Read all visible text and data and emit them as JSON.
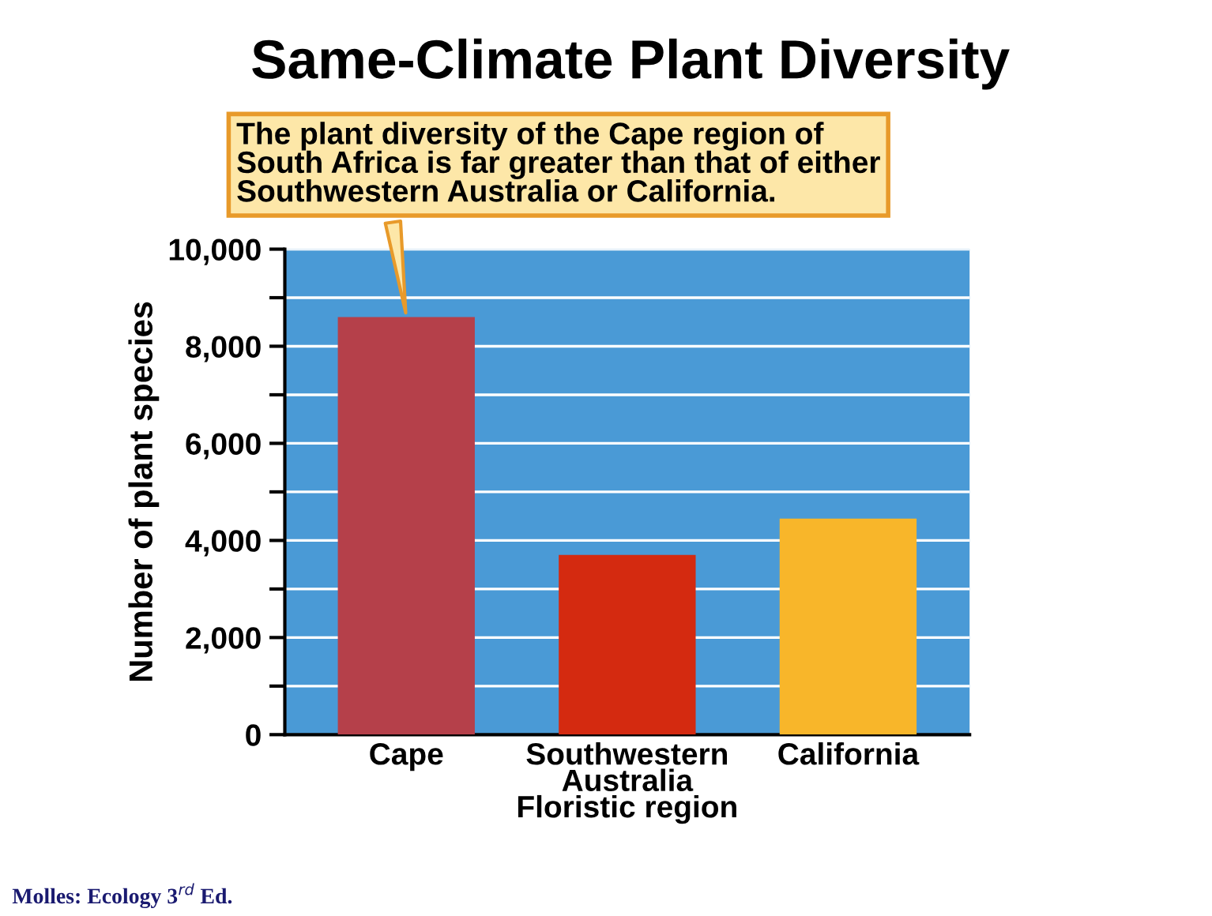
{
  "chart_data": {
    "type": "bar",
    "title": "Same-Climate Plant Diversity",
    "ylabel": "Number of plant species",
    "categories": [
      "Cape",
      "Southwestern\nAustralia\nFloristic region",
      "California"
    ],
    "values": [
      8600,
      3700,
      4450
    ],
    "colors": [
      "#b5404a",
      "#d42a10",
      "#f8b62a"
    ],
    "ylim": [
      0,
      10000
    ],
    "yticks": [
      {
        "value": 0,
        "label": "0"
      },
      {
        "value": 1000,
        "label": null
      },
      {
        "value": 2000,
        "label": "2,000"
      },
      {
        "value": 3000,
        "label": null
      },
      {
        "value": 4000,
        "label": "4,000"
      },
      {
        "value": 5000,
        "label": null
      },
      {
        "value": 6000,
        "label": "6,000"
      },
      {
        "value": 7000,
        "label": null
      },
      {
        "value": 8000,
        "label": "8,000"
      },
      {
        "value": 9000,
        "label": null
      },
      {
        "value": 10000,
        "label": "10,000"
      }
    ],
    "grid": "y",
    "annotations": [
      {
        "text": "The plant diversity of the Cape region of\nSouth Africa is far greater than that of either\nSouthwestern Australia or California.",
        "x": "Cape",
        "y": 8600
      },
      "Molles: Ecology 3$^{rd}$ Ed."
    ]
  }
}
